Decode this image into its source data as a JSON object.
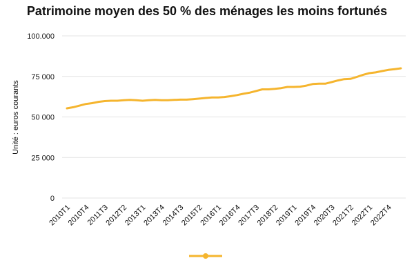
{
  "chart_data": {
    "type": "line",
    "title": "Patrimoine moyen des 50 % des ménages les moins fortunés",
    "ylabel": "Unité : euros courants",
    "xlabel": "",
    "ylim": [
      0,
      100000
    ],
    "y_ticks": [
      0,
      25000,
      50000,
      75000,
      100000
    ],
    "y_tick_labels": [
      "0",
      "25 000",
      "50 000",
      "75 000",
      "100.000"
    ],
    "grid": true,
    "legend_position": "bottom",
    "colors": {
      "series": "#F5B52E",
      "grid": "#E3E3E3",
      "text": "#111111"
    },
    "x_tick_labels": [
      "2010T1",
      "2010T4",
      "2011T3",
      "2012T2",
      "2013T1",
      "2013T4",
      "2014T3",
      "2015T2",
      "2016T1",
      "2016T4",
      "2017T3",
      "2018T2",
      "2019T1",
      "2019T4",
      "2020T3",
      "2021T2",
      "2022T1",
      "2022T4"
    ],
    "x": [
      "2010T1",
      "2010T2",
      "2010T3",
      "2010T4",
      "2011T1",
      "2011T2",
      "2011T3",
      "2011T4",
      "2012T1",
      "2012T2",
      "2012T3",
      "2012T4",
      "2013T1",
      "2013T2",
      "2013T3",
      "2013T4",
      "2014T1",
      "2014T2",
      "2014T3",
      "2014T4",
      "2015T1",
      "2015T2",
      "2015T3",
      "2015T4",
      "2016T1",
      "2016T2",
      "2016T3",
      "2016T4",
      "2017T1",
      "2017T2",
      "2017T3",
      "2017T4",
      "2018T1",
      "2018T2",
      "2018T3",
      "2018T4",
      "2019T1",
      "2019T2",
      "2019T3",
      "2019T4",
      "2020T1",
      "2020T2",
      "2020T3",
      "2020T4",
      "2021T1",
      "2021T2",
      "2021T3",
      "2021T4",
      "2022T1",
      "2022T2",
      "2022T3",
      "2022T4",
      "2023T1",
      "2023T2"
    ],
    "series": [
      {
        "values": [
          55300,
          56000,
          57000,
          58000,
          58500,
          59300,
          59800,
          60000,
          60000,
          60300,
          60500,
          60300,
          60000,
          60300,
          60500,
          60300,
          60300,
          60500,
          60700,
          60700,
          61000,
          61300,
          61700,
          62000,
          62000,
          62300,
          62800,
          63500,
          64300,
          65000,
          66000,
          67000,
          67000,
          67300,
          67800,
          68500,
          68500,
          68700,
          69300,
          70300,
          70500,
          70500,
          71500,
          72500,
          73300,
          73500,
          74700,
          76000,
          77000,
          77500,
          78300,
          79000,
          79500,
          80000
        ]
      }
    ]
  }
}
